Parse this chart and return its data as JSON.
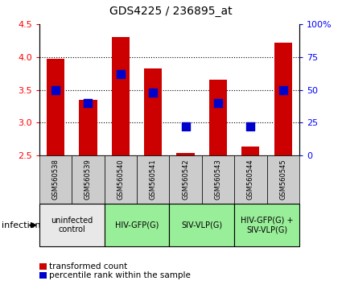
{
  "title": "GDS4225 / 236895_at",
  "samples": [
    "GSM560538",
    "GSM560539",
    "GSM560540",
    "GSM560541",
    "GSM560542",
    "GSM560543",
    "GSM560544",
    "GSM560545"
  ],
  "transformed_counts": [
    3.97,
    3.35,
    4.3,
    3.83,
    2.53,
    3.65,
    2.63,
    4.22
  ],
  "percentile_ranks": [
    50,
    40,
    62,
    48,
    22,
    40,
    22,
    50
  ],
  "ylim": [
    2.5,
    4.5
  ],
  "y_ticks_left": [
    2.5,
    3.0,
    3.5,
    4.0,
    4.5
  ],
  "y_ticks_right_vals": [
    0,
    25,
    50,
    75,
    100
  ],
  "y_ticks_right_labels": [
    "0",
    "25",
    "50",
    "75",
    "100%"
  ],
  "bar_color": "#cc0000",
  "dot_color": "#0000cc",
  "bar_width": 0.55,
  "dot_size": 55,
  "groups": [
    {
      "label": "uninfected\ncontrol",
      "start": 0,
      "end": 2,
      "color": "#e8e8e8"
    },
    {
      "label": "HIV-GFP(G)",
      "start": 2,
      "end": 4,
      "color": "#99ee99"
    },
    {
      "label": "SIV-VLP(G)",
      "start": 4,
      "end": 6,
      "color": "#99ee99"
    },
    {
      "label": "HIV-GFP(G) +\nSIV-VLP(G)",
      "start": 6,
      "end": 8,
      "color": "#99ee99"
    }
  ],
  "infection_label": "infection",
  "legend_red_label": "transformed count",
  "legend_blue_label": "percentile rank within the sample",
  "sample_bg_color": "#cccccc",
  "grid_yticks": [
    3.0,
    3.5,
    4.0
  ]
}
